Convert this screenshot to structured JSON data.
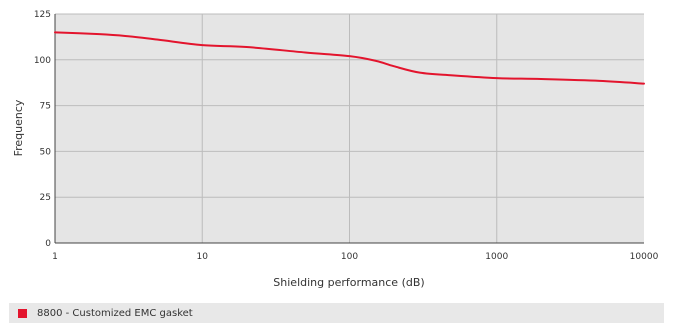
{
  "chart_data": {
    "type": "line",
    "title": "",
    "xlabel": "Shielding performance (dB)",
    "ylabel": "Frequency",
    "xscale": "log",
    "xlim": [
      1,
      10000
    ],
    "ylim": [
      0,
      125
    ],
    "x_ticks": [
      1,
      10,
      100,
      1000,
      10000
    ],
    "x_tick_labels": [
      "1",
      "10",
      "100",
      "1000",
      "10000"
    ],
    "y_ticks": [
      0,
      25,
      50,
      75,
      100,
      125
    ],
    "y_tick_labels": [
      "0",
      "25",
      "50",
      "75",
      "100",
      "125"
    ],
    "grid": true,
    "legend_position": "bottom",
    "series": [
      {
        "name": "8800 - Customized EMC gasket",
        "color": "#e3142d",
        "x": [
          1,
          2,
          3,
          5,
          10,
          20,
          50,
          100,
          150,
          200,
          300,
          500,
          1000,
          2000,
          5000,
          10000
        ],
        "y": [
          115,
          114,
          113,
          111,
          108,
          107,
          104,
          102,
          99.5,
          96.5,
          93,
          91.5,
          90,
          89.5,
          88.5,
          87
        ]
      }
    ]
  },
  "colors": {
    "plot_background": "#e5e5e5",
    "grid": "#bcbcbc",
    "axis": "#444444",
    "series": "#e3142d"
  }
}
